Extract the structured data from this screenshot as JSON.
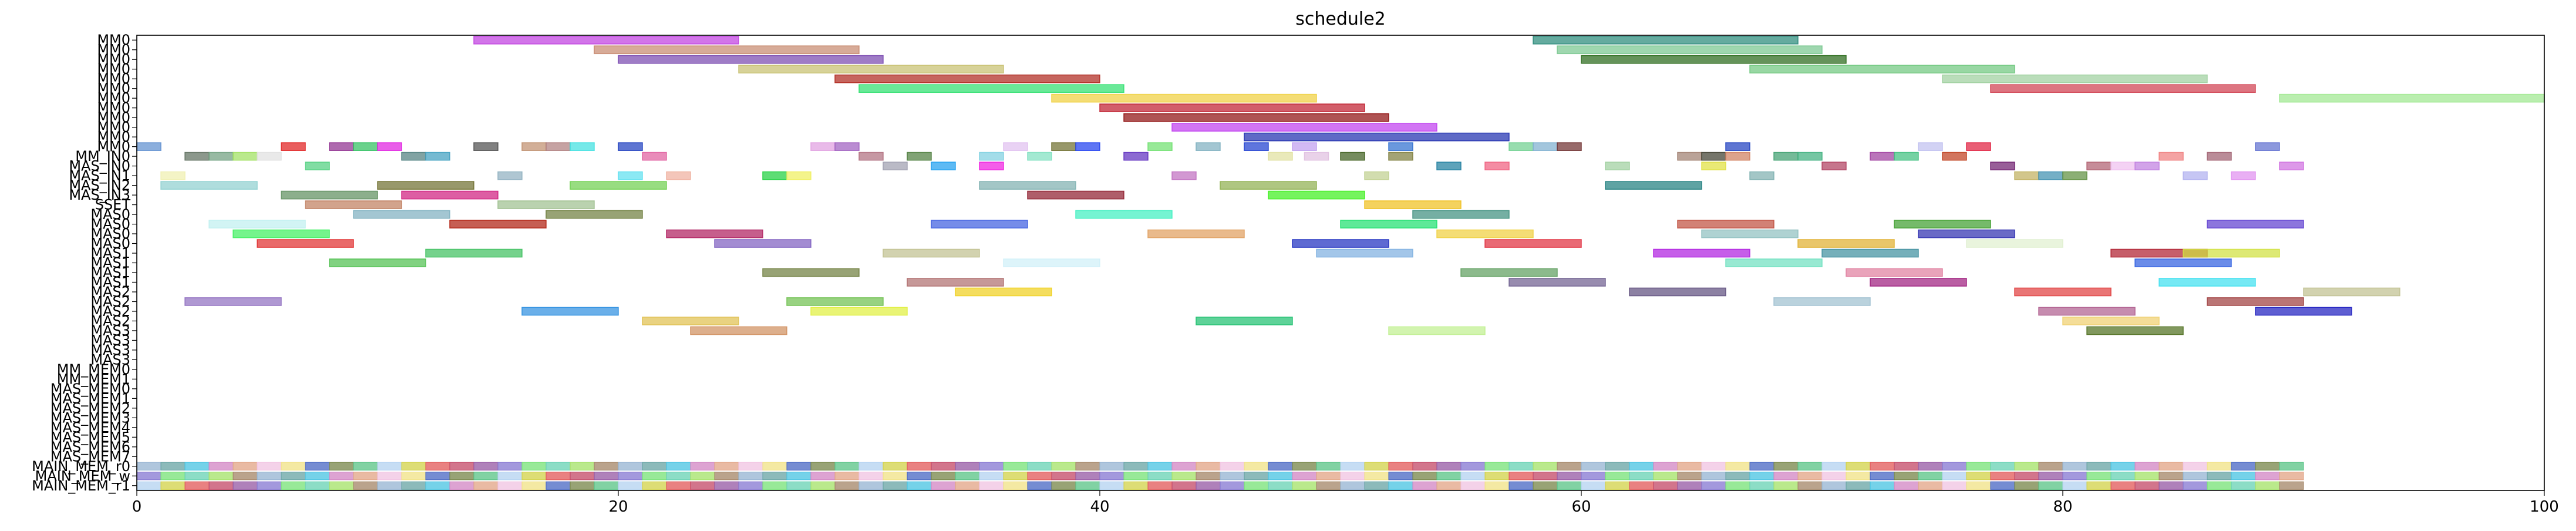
{
  "chart_data": {
    "type": "bar",
    "title": "schedule2",
    "xlabel": "",
    "ylabel": "",
    "xlim": [
      0,
      100
    ],
    "xticks": [
      0,
      20,
      40,
      60,
      80,
      100
    ],
    "grid": false,
    "rows": [
      "MM0",
      "MM0",
      "MM0",
      "MM0",
      "MM0",
      "MM0",
      "MM0",
      "MM0",
      "MM0",
      "MM0",
      "MM0",
      "MM0",
      "MM_IN0",
      "MAS_IN0",
      "MAS_IN1",
      "MAS_IN2",
      "MAS_IN3",
      "SSET",
      "MAS0",
      "MAS0",
      "MAS0",
      "MAS0",
      "MAS1",
      "MAS1",
      "MAS1",
      "MAS1",
      "MAS2",
      "MAS2",
      "MAS2",
      "MAS2",
      "MAS3",
      "MAS3",
      "MAS3",
      "MAS3",
      "MM_MEM0",
      "MM_MEM1",
      "MAS_MEM0",
      "MAS_MEM1",
      "MAS_MEM2",
      "MAS_MEM3",
      "MAS_MEM4",
      "MAS_MEM5",
      "MAS_MEM6",
      "MAS_MEM7",
      "MAIN_MEM_r0",
      "MAIN_MEM_w",
      "MAIN_MEM_r1"
    ],
    "bars": [
      {
        "row": 0,
        "start": 14.0,
        "end": 25.0,
        "color": "#c040e0"
      },
      {
        "row": 0,
        "start": 58.0,
        "end": 69.0,
        "color": "#2a8a7a"
      },
      {
        "row": 1,
        "start": 19.0,
        "end": 30.0,
        "color": "#c88a70"
      },
      {
        "row": 1,
        "start": 59.0,
        "end": 70.0,
        "color": "#7ac890"
      },
      {
        "row": 2,
        "start": 20.0,
        "end": 31.0,
        "color": "#7a4ab0"
      },
      {
        "row": 2,
        "start": 60.0,
        "end": 71.0,
        "color": "#2a6a1a"
      },
      {
        "row": 3,
        "start": 25.0,
        "end": 36.0,
        "color": "#c8c070"
      },
      {
        "row": 3,
        "start": 67.0,
        "end": 78.0,
        "color": "#70c880"
      },
      {
        "row": 4,
        "start": 29.0,
        "end": 40.0,
        "color": "#b02a20"
      },
      {
        "row": 4,
        "start": 75.0,
        "end": 86.0,
        "color": "#a0d0a0"
      },
      {
        "row": 5,
        "start": 30.0,
        "end": 41.0,
        "color": "#30e070"
      },
      {
        "row": 5,
        "start": 77.0,
        "end": 88.0,
        "color": "#d04050"
      },
      {
        "row": 6,
        "start": 38.0,
        "end": 49.0,
        "color": "#f0d040"
      },
      {
        "row": 6,
        "start": 89.0,
        "end": 100.0,
        "color": "#a0e890"
      },
      {
        "row": 7,
        "start": 40.0,
        "end": 51.0,
        "color": "#c02030"
      },
      {
        "row": 8,
        "start": 41.0,
        "end": 52.0,
        "color": "#901010"
      },
      {
        "row": 9,
        "start": 43.0,
        "end": 54.0,
        "color": "#c040f0"
      },
      {
        "row": 10,
        "start": 46.0,
        "end": 57.0,
        "color": "#2030b0"
      },
      {
        "row": 11,
        "start": 0.0,
        "end": 1.0,
        "color": "#6090d0"
      },
      {
        "row": 11,
        "start": 6.0,
        "end": 7.0,
        "color": "#e02020"
      },
      {
        "row": 11,
        "start": 8.0,
        "end": 9.0,
        "color": "#903090"
      },
      {
        "row": 11,
        "start": 9.0,
        "end": 10.0,
        "color": "#30c060"
      },
      {
        "row": 11,
        "start": 10.0,
        "end": 11.0,
        "color": "#e020e0"
      },
      {
        "row": 11,
        "start": 14.0,
        "end": 15.0,
        "color": "#505050"
      },
      {
        "row": 11,
        "start": 16.0,
        "end": 17.0,
        "color": "#c09070"
      },
      {
        "row": 11,
        "start": 17.0,
        "end": 18.0,
        "color": "#b08080"
      },
      {
        "row": 11,
        "start": 18.0,
        "end": 19.0,
        "color": "#40e0e0"
      },
      {
        "row": 11,
        "start": 20.0,
        "end": 21.0,
        "color": "#2040c0"
      },
      {
        "row": 11,
        "start": 28.0,
        "end": 29.0,
        "color": "#e0a0e0"
      },
      {
        "row": 11,
        "start": 29.0,
        "end": 30.0,
        "color": "#a060c0"
      },
      {
        "row": 11,
        "start": 36.0,
        "end": 37.0,
        "color": "#e0c0f0"
      },
      {
        "row": 11,
        "start": 38.0,
        "end": 39.0,
        "color": "#707030"
      },
      {
        "row": 11,
        "start": 39.0,
        "end": 40.0,
        "color": "#2040f0"
      },
      {
        "row": 11,
        "start": 42.0,
        "end": 43.0,
        "color": "#70e070"
      },
      {
        "row": 11,
        "start": 44.0,
        "end": 45.0,
        "color": "#80b0c0"
      },
      {
        "row": 11,
        "start": 46.0,
        "end": 47.0,
        "color": "#2040d0"
      },
      {
        "row": 11,
        "start": 48.0,
        "end": 49.0,
        "color": "#c0a0f0"
      },
      {
        "row": 11,
        "start": 52.0,
        "end": 53.0,
        "color": "#3070d0"
      },
      {
        "row": 11,
        "start": 57.0,
        "end": 58.0,
        "color": "#70d090"
      },
      {
        "row": 11,
        "start": 58.0,
        "end": 59.0,
        "color": "#80b0d0"
      },
      {
        "row": 11,
        "start": 59.0,
        "end": 60.0,
        "color": "#703030"
      },
      {
        "row": 11,
        "start": 66.0,
        "end": 67.0,
        "color": "#2040c0"
      },
      {
        "row": 11,
        "start": 74.0,
        "end": 75.0,
        "color": "#c0c0f0"
      },
      {
        "row": 11,
        "start": 76.0,
        "end": 77.0,
        "color": "#e02040"
      },
      {
        "row": 11,
        "start": 88.0,
        "end": 89.0,
        "color": "#6070d0"
      },
      {
        "row": 12,
        "start": 2.0,
        "end": 3.0,
        "color": "#607060"
      },
      {
        "row": 12,
        "start": 3.0,
        "end": 4.0,
        "color": "#70a080"
      },
      {
        "row": 12,
        "start": 4.0,
        "end": 5.0,
        "color": "#a0e060"
      },
      {
        "row": 12,
        "start": 5.0,
        "end": 6.0,
        "color": "#e0e0e0"
      },
      {
        "row": 12,
        "start": 11.0,
        "end": 12.0,
        "color": "#508080"
      },
      {
        "row": 12,
        "start": 12.0,
        "end": 13.0,
        "color": "#40a0c0"
      },
      {
        "row": 12,
        "start": 21.0,
        "end": 22.0,
        "color": "#e060a0"
      },
      {
        "row": 12,
        "start": 30.0,
        "end": 31.0,
        "color": "#b07080"
      },
      {
        "row": 12,
        "start": 32.0,
        "end": 33.0,
        "color": "#508040"
      },
      {
        "row": 12,
        "start": 35.0,
        "end": 36.0,
        "color": "#80d0e0"
      },
      {
        "row": 12,
        "start": 37.0,
        "end": 38.0,
        "color": "#80e0c0"
      },
      {
        "row": 12,
        "start": 41.0,
        "end": 42.0,
        "color": "#6030c0"
      },
      {
        "row": 12,
        "start": 47.0,
        "end": 48.0,
        "color": "#e0e0a0"
      },
      {
        "row": 12,
        "start": 48.5,
        "end": 49.5,
        "color": "#e0c0e0"
      },
      {
        "row": 12,
        "start": 50.0,
        "end": 51.0,
        "color": "#406020"
      },
      {
        "row": 12,
        "start": 52.0,
        "end": 53.0,
        "color": "#808040"
      },
      {
        "row": 12,
        "start": 64.0,
        "end": 65.0,
        "color": "#a08070"
      },
      {
        "row": 12,
        "start": 65.0,
        "end": 66.0,
        "color": "#404030"
      },
      {
        "row": 12,
        "start": 66.0,
        "end": 67.0,
        "color": "#d08060"
      },
      {
        "row": 12,
        "start": 68.0,
        "end": 69.0,
        "color": "#40a070"
      },
      {
        "row": 12,
        "start": 69.0,
        "end": 70.0,
        "color": "#40b080"
      },
      {
        "row": 12,
        "start": 72.0,
        "end": 73.0,
        "color": "#a040a0"
      },
      {
        "row": 12,
        "start": 73.0,
        "end": 74.0,
        "color": "#40c080"
      },
      {
        "row": 12,
        "start": 75.0,
        "end": 76.0,
        "color": "#c04020"
      },
      {
        "row": 12,
        "start": 84.0,
        "end": 85.0,
        "color": "#f08080"
      },
      {
        "row": 12,
        "start": 86.0,
        "end": 87.0,
        "color": "#a06070"
      },
      {
        "row": 13,
        "start": 7.0,
        "end": 8.0,
        "color": "#50d080"
      },
      {
        "row": 13,
        "start": 31.0,
        "end": 32.0,
        "color": "#a0a0b0"
      },
      {
        "row": 13,
        "start": 33.0,
        "end": 34.0,
        "color": "#20a0f0"
      },
      {
        "row": 13,
        "start": 35.0,
        "end": 36.0,
        "color": "#f020e0"
      },
      {
        "row": 13,
        "start": 54.0,
        "end": 55.0,
        "color": "#2080a0"
      },
      {
        "row": 13,
        "start": 56.0,
        "end": 57.0,
        "color": "#f06080"
      },
      {
        "row": 13,
        "start": 61.0,
        "end": 62.0,
        "color": "#a0d0a0"
      },
      {
        "row": 13,
        "start": 65.0,
        "end": 66.0,
        "color": "#e0e040"
      },
      {
        "row": 13,
        "start": 70.0,
        "end": 71.0,
        "color": "#b04060"
      },
      {
        "row": 13,
        "start": 77.0,
        "end": 78.0,
        "color": "#702070"
      },
      {
        "row": 13,
        "start": 81.0,
        "end": 82.0,
        "color": "#b06070"
      },
      {
        "row": 13,
        "start": 82.0,
        "end": 83.0,
        "color": "#f0c0f0"
      },
      {
        "row": 13,
        "start": 83.0,
        "end": 84.0,
        "color": "#c080e0"
      },
      {
        "row": 13,
        "start": 89.0,
        "end": 90.0,
        "color": "#d070e0"
      },
      {
        "row": 14,
        "start": 1.0,
        "end": 2.0,
        "color": "#f0f0b0"
      },
      {
        "row": 14,
        "start": 15.0,
        "end": 16.0,
        "color": "#90b0c0"
      },
      {
        "row": 14,
        "start": 20.0,
        "end": 21.0,
        "color": "#60e0f0"
      },
      {
        "row": 14,
        "start": 22.0,
        "end": 23.0,
        "color": "#f0b0a0"
      },
      {
        "row": 14,
        "start": 26.0,
        "end": 27.0,
        "color": "#20d040"
      },
      {
        "row": 14,
        "start": 27.0,
        "end": 28.0,
        "color": "#f0f060"
      },
      {
        "row": 14,
        "start": 43.0,
        "end": 44.0,
        "color": "#c070c0"
      },
      {
        "row": 14,
        "start": 51.0,
        "end": 52.0,
        "color": "#c0d090"
      },
      {
        "row": 14,
        "start": 67.0,
        "end": 68.0,
        "color": "#80b0b0"
      },
      {
        "row": 14,
        "start": 78.0,
        "end": 79.0,
        "color": "#c0b060"
      },
      {
        "row": 14,
        "start": 79.0,
        "end": 80.0,
        "color": "#4090b0"
      },
      {
        "row": 14,
        "start": 80.0,
        "end": 81.0,
        "color": "#609040"
      },
      {
        "row": 14,
        "start": 85.0,
        "end": 86.0,
        "color": "#b0b0f0"
      },
      {
        "row": 14,
        "start": 87.0,
        "end": 88.0,
        "color": "#e090f0"
      },
      {
        "row": 15,
        "start": 1.0,
        "end": 5.0,
        "color": "#90d0d0"
      },
      {
        "row": 15,
        "start": 10.0,
        "end": 14.0,
        "color": "#707030"
      },
      {
        "row": 15,
        "start": 18.0,
        "end": 22.0,
        "color": "#70d050"
      },
      {
        "row": 15,
        "start": 35.0,
        "end": 39.0,
        "color": "#80b0b0"
      },
      {
        "row": 15,
        "start": 45.0,
        "end": 49.0,
        "color": "#90b050"
      },
      {
        "row": 15,
        "start": 61.0,
        "end": 65.0,
        "color": "#208080"
      },
      {
        "row": 16,
        "start": 6.0,
        "end": 10.0,
        "color": "#609060"
      },
      {
        "row": 16,
        "start": 11.0,
        "end": 15.0,
        "color": "#d02080"
      },
      {
        "row": 16,
        "start": 37.0,
        "end": 41.0,
        "color": "#902030"
      },
      {
        "row": 16,
        "start": 47.0,
        "end": 51.0,
        "color": "#40f020"
      },
      {
        "row": 17,
        "start": 7.0,
        "end": 11.0,
        "color": "#c08060"
      },
      {
        "row": 17,
        "start": 15.0,
        "end": 19.0,
        "color": "#a0c090"
      },
      {
        "row": 17,
        "start": 51.0,
        "end": 55.0,
        "color": "#f0c020"
      },
      {
        "row": 18,
        "start": 9.0,
        "end": 13.0,
        "color": "#80b0c0"
      },
      {
        "row": 18,
        "start": 17.0,
        "end": 21.0,
        "color": "#708040"
      },
      {
        "row": 18,
        "start": 39.0,
        "end": 43.0,
        "color": "#40f0c0"
      },
      {
        "row": 18,
        "start": 53.0,
        "end": 57.0,
        "color": "#409080"
      },
      {
        "row": 19,
        "start": 3.0,
        "end": 7.0,
        "color": "#c0f0f0"
      },
      {
        "row": 19,
        "start": 13.0,
        "end": 17.0,
        "color": "#b02010"
      },
      {
        "row": 19,
        "start": 33.0,
        "end": 37.0,
        "color": "#4060e0"
      },
      {
        "row": 19,
        "start": 50.0,
        "end": 54.0,
        "color": "#20e070"
      },
      {
        "row": 19,
        "start": 64.0,
        "end": 68.0,
        "color": "#c05040"
      },
      {
        "row": 19,
        "start": 73.0,
        "end": 77.0,
        "color": "#40a030"
      },
      {
        "row": 19,
        "start": 86.0,
        "end": 90.0,
        "color": "#6040d0"
      },
      {
        "row": 20,
        "start": 4.0,
        "end": 8.0,
        "color": "#40f060"
      },
      {
        "row": 20,
        "start": 22.0,
        "end": 26.0,
        "color": "#b02060"
      },
      {
        "row": 20,
        "start": 42.0,
        "end": 46.0,
        "color": "#e0a060"
      },
      {
        "row": 20,
        "start": 54.0,
        "end": 58.0,
        "color": "#f0d040"
      },
      {
        "row": 20,
        "start": 65.0,
        "end": 69.0,
        "color": "#90c0c0"
      },
      {
        "row": 20,
        "start": 74.0,
        "end": 78.0,
        "color": "#3030b0"
      },
      {
        "row": 21,
        "start": 5.0,
        "end": 9.0,
        "color": "#e03030"
      },
      {
        "row": 21,
        "start": 24.0,
        "end": 28.0,
        "color": "#8060c0"
      },
      {
        "row": 21,
        "start": 48.0,
        "end": 52.0,
        "color": "#2030c0"
      },
      {
        "row": 21,
        "start": 56.0,
        "end": 60.0,
        "color": "#e03040"
      },
      {
        "row": 21,
        "start": 69.0,
        "end": 73.0,
        "color": "#e0b030"
      },
      {
        "row": 21,
        "start": 76.0,
        "end": 80.0,
        "color": "#e0f0d0"
      },
      {
        "row": 22,
        "start": 12.0,
        "end": 16.0,
        "color": "#40c060"
      },
      {
        "row": 22,
        "start": 31.0,
        "end": 35.0,
        "color": "#c0c090"
      },
      {
        "row": 22,
        "start": 49.0,
        "end": 53.0,
        "color": "#80b0e0"
      },
      {
        "row": 22,
        "start": 63.0,
        "end": 67.0,
        "color": "#b020e0"
      },
      {
        "row": 22,
        "start": 70.0,
        "end": 74.0,
        "color": "#4090a0"
      },
      {
        "row": 22,
        "start": 82.0,
        "end": 86.0,
        "color": "#b02030"
      },
      {
        "row": 22,
        "start": 85.0,
        "end": 89.0,
        "color": "#d0e040"
      },
      {
        "row": 23,
        "start": 8.0,
        "end": 12.0,
        "color": "#50c050"
      },
      {
        "row": 23,
        "start": 36.0,
        "end": 40.0,
        "color": "#d0f0f8"
      },
      {
        "row": 23,
        "start": 66.0,
        "end": 70.0,
        "color": "#70e0c0"
      },
      {
        "row": 23,
        "start": 83.0,
        "end": 87.0,
        "color": "#3060e0"
      },
      {
        "row": 24,
        "start": 26.0,
        "end": 30.0,
        "color": "#708040"
      },
      {
        "row": 24,
        "start": 55.0,
        "end": 59.0,
        "color": "#60a060"
      },
      {
        "row": 24,
        "start": 71.0,
        "end": 75.0,
        "color": "#e080a0"
      },
      {
        "row": 25,
        "start": 32.0,
        "end": 36.0,
        "color": "#b07070"
      },
      {
        "row": 25,
        "start": 57.0,
        "end": 61.0,
        "color": "#706090"
      },
      {
        "row": 25,
        "start": 72.0,
        "end": 76.0,
        "color": "#a02080"
      },
      {
        "row": 25,
        "start": 84.0,
        "end": 88.0,
        "color": "#40e0f0"
      },
      {
        "row": 26,
        "start": 34.0,
        "end": 38.0,
        "color": "#f0d020"
      },
      {
        "row": 26,
        "start": 62.0,
        "end": 66.0,
        "color": "#605080"
      },
      {
        "row": 26,
        "start": 78.0,
        "end": 82.0,
        "color": "#e04040"
      },
      {
        "row": 26,
        "start": 90.0,
        "end": 94.0,
        "color": "#c0c090"
      },
      {
        "row": 27,
        "start": 2.0,
        "end": 6.0,
        "color": "#9070c0"
      },
      {
        "row": 27,
        "start": 27.0,
        "end": 31.0,
        "color": "#70c050"
      },
      {
        "row": 27,
        "start": 68.0,
        "end": 72.0,
        "color": "#a0c0d0"
      },
      {
        "row": 27,
        "start": 86.0,
        "end": 90.0,
        "color": "#a04040"
      },
      {
        "row": 28,
        "start": 16.0,
        "end": 20.0,
        "color": "#3090e0"
      },
      {
        "row": 28,
        "start": 28.0,
        "end": 32.0,
        "color": "#e0f040"
      },
      {
        "row": 28,
        "start": 79.0,
        "end": 83.0,
        "color": "#b06090"
      },
      {
        "row": 28,
        "start": 88.0,
        "end": 92.0,
        "color": "#2020c0"
      },
      {
        "row": 29,
        "start": 21.0,
        "end": 25.0,
        "color": "#e0c050"
      },
      {
        "row": 29,
        "start": 44.0,
        "end": 48.0,
        "color": "#20c070"
      },
      {
        "row": 29,
        "start": 80.0,
        "end": 84.0,
        "color": "#f0d070"
      },
      {
        "row": 30,
        "start": 23.0,
        "end": 27.0,
        "color": "#d09060"
      },
      {
        "row": 30,
        "start": 52.0,
        "end": 56.0,
        "color": "#c0f090"
      },
      {
        "row": 30,
        "start": 81.0,
        "end": 85.0,
        "color": "#507020"
      }
    ],
    "mem_tiles": {
      "rows": [
        44,
        45,
        46
      ],
      "from": 0,
      "to": 90,
      "step": 1,
      "palette": [
        "#90b0d0",
        "#d080c0",
        "#f0e080",
        "#50c080",
        "#e05050",
        "#8070d0",
        "#a0e060",
        "#60a0a0",
        "#e0a080",
        "#4060c0",
        "#b0d0f0",
        "#c04060",
        "#70e070",
        "#a08060",
        "#40c0e0",
        "#f0c0e0",
        "#708040",
        "#d0d040",
        "#9050a0",
        "#60d0b0"
      ]
    }
  }
}
